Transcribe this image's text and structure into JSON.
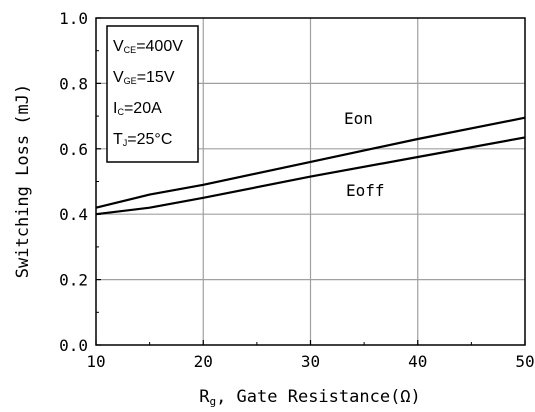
{
  "chart_data": {
    "type": "line",
    "xlabel_main": "R",
    "xlabel_sub": "g",
    "xlabel_rest": ", Gate Resistance(Ω)",
    "ylabel": "Switching Loss (mJ)",
    "xlim": [
      10,
      50
    ],
    "ylim": [
      0,
      1.0
    ],
    "x_ticks": [
      10,
      20,
      30,
      40,
      50
    ],
    "y_ticks": [
      "0.0",
      "0.2",
      "0.4",
      "0.6",
      "0.8",
      "1.0"
    ],
    "grid": true,
    "series": [
      {
        "name": "Eon",
        "x": [
          10,
          15,
          20,
          30,
          40,
          50
        ],
        "values": [
          0.42,
          0.46,
          0.49,
          0.56,
          0.63,
          0.695
        ]
      },
      {
        "name": "Eoff",
        "x": [
          10,
          15,
          20,
          30,
          40,
          50
        ],
        "values": [
          0.4,
          0.42,
          0.45,
          0.515,
          0.575,
          0.635
        ]
      }
    ],
    "conditions": [
      {
        "main": "V",
        "sub": "CE",
        "rest": "=400V"
      },
      {
        "main": "V",
        "sub": "GE",
        "rest": "=15V"
      },
      {
        "main": "I",
        "sub": "C",
        "rest": "=20A"
      },
      {
        "main": "T",
        "sub": "J",
        "rest": "=25°C"
      }
    ],
    "colors": {
      "line": "#000000",
      "grid": "#a0a0a0"
    }
  }
}
